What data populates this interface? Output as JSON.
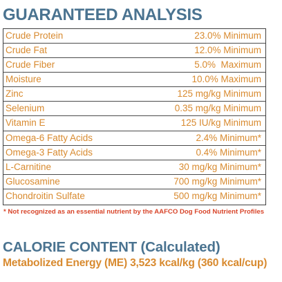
{
  "guaranteed_analysis": {
    "title": "GUARANTEED ANALYSIS",
    "rows": [
      {
        "name": "Crude Protein",
        "value": "23.0% Minimum"
      },
      {
        "name": "Crude Fat",
        "value": "12.0% Minimum"
      },
      {
        "name": "Crude Fiber",
        "value": "5.0%  Maximum"
      },
      {
        "name": "Moisture",
        "value": "10.0% Maximum"
      },
      {
        "name": "Zinc",
        "value": "125 mg/kg Minimum"
      },
      {
        "name": "Selenium",
        "value": "0.35 mg/kg Minimum"
      },
      {
        "name": "Vitamin E",
        "value": "125 IU/kg Minimum"
      },
      {
        "name": "Omega-6 Fatty Acids",
        "value": "2.4% Minimum*"
      },
      {
        "name": "Omega-3 Fatty Acids",
        "value": "0.4% Minimum*"
      },
      {
        "name": "L-Carnitine",
        "value": "30 mg/kg Minimum*"
      },
      {
        "name": "Glucosamine",
        "value": "700 mg/kg Minimum*"
      },
      {
        "name": "Chondroitin Sulfate",
        "value": "500 mg/kg Minimum*"
      }
    ],
    "footnote": "* Not recognized as an essential nutrient by the AAFCO Dog Food Nutrient Profiles"
  },
  "calorie_content": {
    "heading": "CALORIE CONTENT",
    "subheading": "(Calculated)",
    "energy": "Metabolized Energy (ME) 3,523 kcal/kg (360 kcal/cup)"
  },
  "colors": {
    "title_blue": "#4a7390",
    "text_orange": "#d88a2f",
    "footnote_red": "#d8452a",
    "border_dark": "#3f3f3f"
  }
}
